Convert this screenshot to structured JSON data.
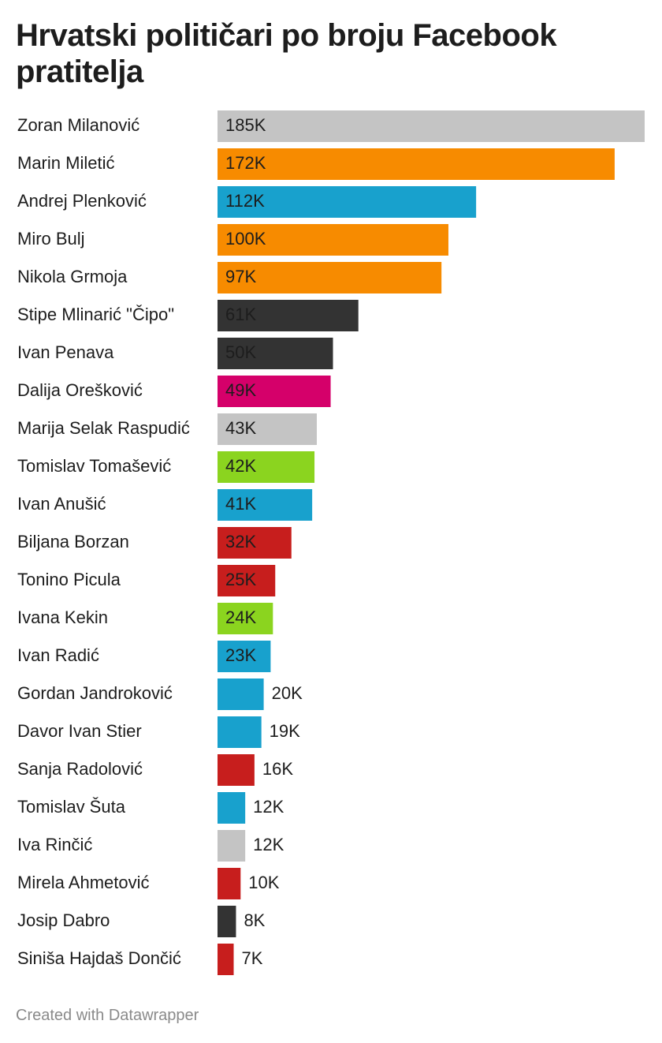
{
  "chart_data": {
    "type": "bar",
    "orientation": "horizontal",
    "title": "Hrvatski političari po broju Facebook pratitelja",
    "categories": [
      "Zoran Milanović",
      "Marin Miletić",
      "Andrej Plenković",
      "Miro Bulj",
      "Nikola Grmoja",
      "Stipe Mlinarić \"Čipo\"",
      "Ivan Penava",
      "Dalija Orešković",
      "Marija Selak Raspudić",
      "Tomislav Tomašević",
      "Ivan Anušić",
      "Biljana Borzan",
      "Tonino Picula",
      "Ivana Kekin",
      "Ivan Radić",
      "Gordan Jandroković",
      "Davor Ivan Stier",
      "Sanja Radolović",
      "Tomislav Šuta",
      "Iva Rinčić",
      "Mirela Ahmetović",
      "Josip Dabro",
      "Siniša Hajdaš Dončić"
    ],
    "values": [
      185,
      172,
      112,
      100,
      97,
      61,
      50,
      49,
      43,
      42,
      41,
      32,
      25,
      24,
      23,
      20,
      19,
      16,
      12,
      12,
      10,
      8,
      7
    ],
    "value_labels": [
      "185K",
      "172K",
      "112K",
      "100K",
      "97K",
      "61K",
      "50K",
      "49K",
      "43K",
      "42K",
      "41K",
      "32K",
      "25K",
      "24K",
      "23K",
      "20K",
      "19K",
      "16K",
      "12K",
      "12K",
      "10K",
      "8K",
      "7K"
    ],
    "colors": [
      "#c4c4c4",
      "#f78b00",
      "#18a1cd",
      "#f78b00",
      "#f78b00",
      "#333333",
      "#333333",
      "#d5006a",
      "#c4c4c4",
      "#8bd41f",
      "#18a1cd",
      "#c71e1d",
      "#c71e1d",
      "#8bd41f",
      "#18a1cd",
      "#18a1cd",
      "#18a1cd",
      "#c71e1d",
      "#18a1cd",
      "#c4c4c4",
      "#c71e1d",
      "#333333",
      "#c71e1d"
    ],
    "credit": "Created with Datawrapper"
  }
}
